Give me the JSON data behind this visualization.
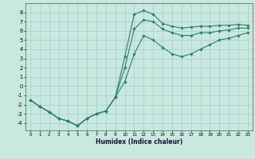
{
  "xlabel": "Humidex (Indice chaleur)",
  "x": [
    0,
    1,
    2,
    3,
    4,
    5,
    6,
    7,
    8,
    9,
    10,
    11,
    12,
    13,
    14,
    15,
    16,
    17,
    18,
    19,
    20,
    21,
    22,
    23
  ],
  "y_top": [
    -1.5,
    -2.2,
    -2.8,
    -3.5,
    -3.8,
    -4.3,
    -3.5,
    -3.0,
    -2.7,
    -1.2,
    3.2,
    7.8,
    8.2,
    7.8,
    6.8,
    6.5,
    6.3,
    6.4,
    6.5,
    6.5,
    6.6,
    6.6,
    6.7,
    6.6
  ],
  "y_mid": [
    -1.5,
    -2.2,
    -2.8,
    -3.5,
    -3.8,
    -4.3,
    -3.5,
    -3.0,
    -2.7,
    -1.2,
    2.0,
    6.2,
    7.2,
    7.0,
    6.2,
    5.8,
    5.5,
    5.5,
    5.8,
    5.8,
    6.0,
    6.1,
    6.3,
    6.3
  ],
  "y_bot": [
    -1.5,
    -2.2,
    -2.8,
    -3.5,
    -3.8,
    -4.3,
    -3.5,
    -3.0,
    -2.7,
    -1.2,
    0.5,
    3.5,
    5.5,
    5.0,
    4.2,
    3.5,
    3.2,
    3.5,
    4.0,
    4.5,
    5.0,
    5.2,
    5.5,
    5.8
  ],
  "color": "#2e7d6e",
  "bg_color": "#c8e8e0",
  "grid_color": "#9dc8c0",
  "ylim": [
    -4.8,
    9.0
  ],
  "xlim": [
    0,
    23
  ],
  "yticks": [
    -4,
    -3,
    -2,
    -1,
    0,
    1,
    2,
    3,
    4,
    5,
    6,
    7,
    8
  ],
  "xticks": [
    0,
    1,
    2,
    3,
    4,
    5,
    6,
    7,
    8,
    9,
    10,
    11,
    12,
    13,
    14,
    15,
    16,
    17,
    18,
    19,
    20,
    21,
    22,
    23
  ],
  "marker": "D",
  "markersize": 1.8,
  "linewidth": 0.8,
  "tick_fontsize": 5.0,
  "xlabel_fontsize": 5.5
}
